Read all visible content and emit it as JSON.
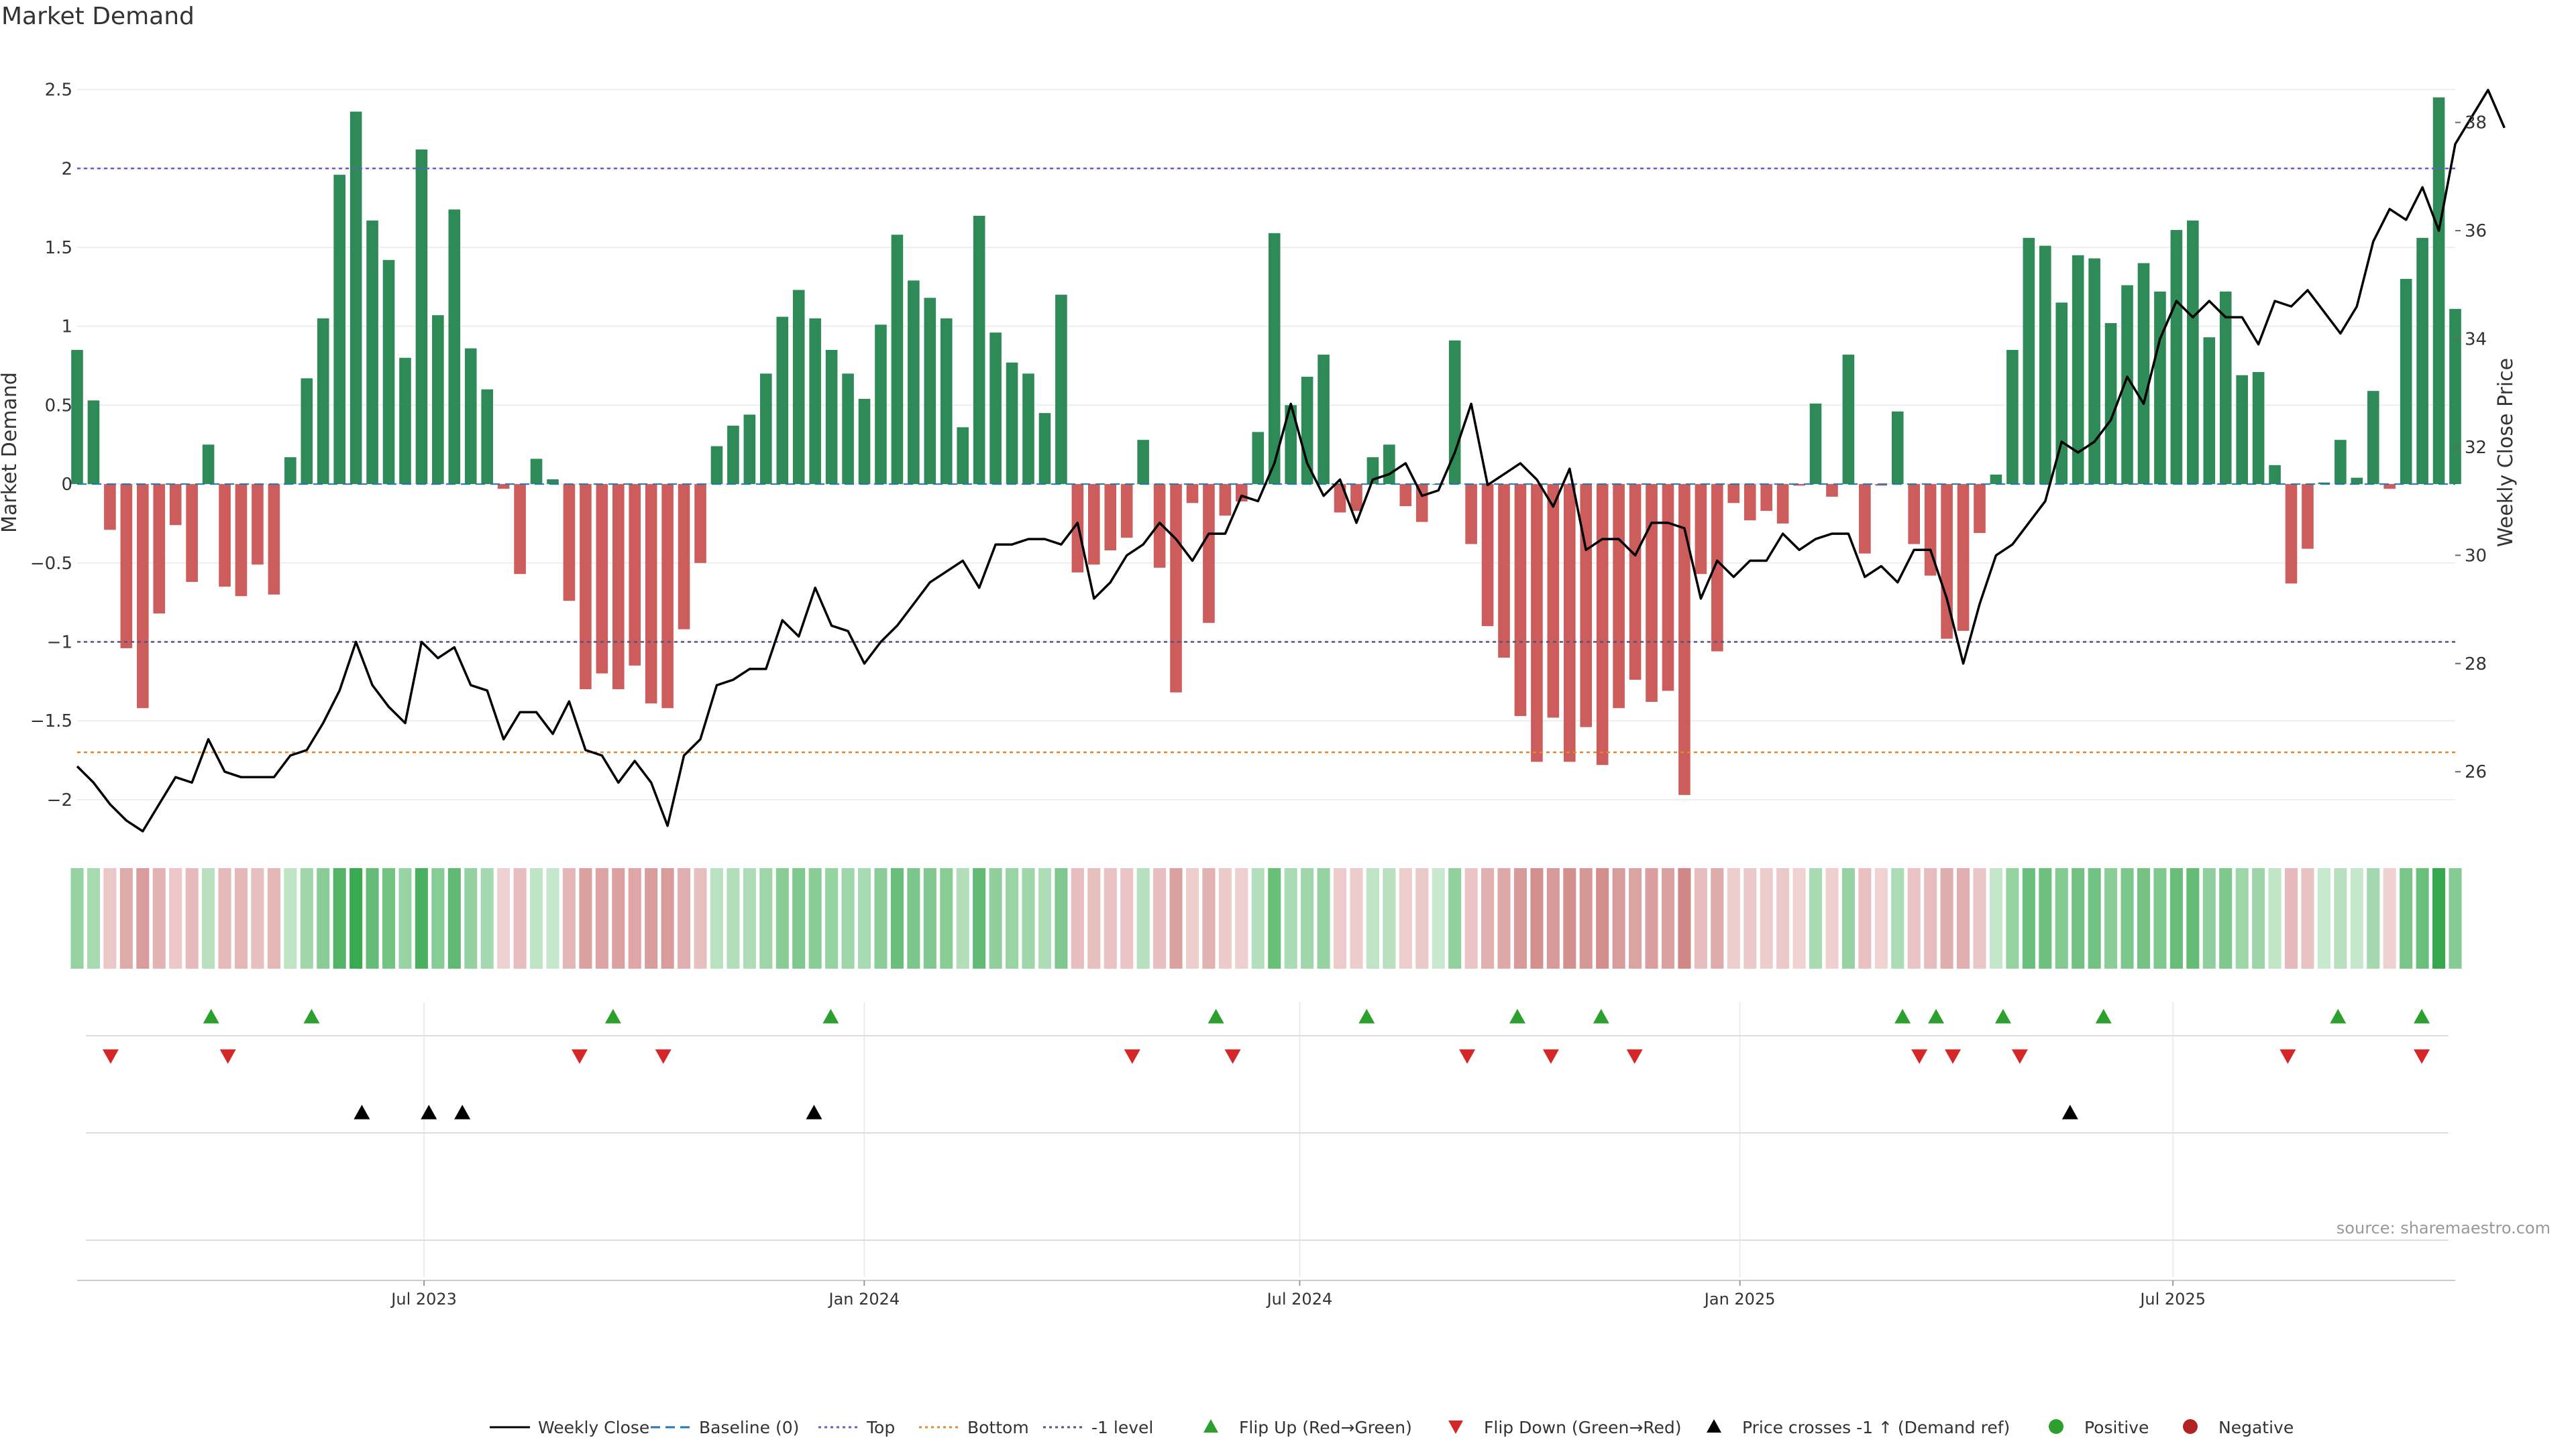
{
  "title": "Market Demand",
  "source": "source: sharemaestro.com",
  "colors": {
    "positive": "#2e8b57",
    "negative": "#cd5c5c",
    "price": "#000000",
    "top": "#6a5acd",
    "bottom": "#e08a2c",
    "level": "#555577",
    "flip_up": "#2ca02c",
    "flip_down": "#d62728"
  },
  "legend": [
    {
      "label": "Weekly Close",
      "kind": "line",
      "color": "#000000",
      "dash": ""
    },
    {
      "label": "Baseline (0)",
      "kind": "line",
      "color": "#1f77b4",
      "dash": "14,8"
    },
    {
      "label": "Top",
      "kind": "line",
      "color": "#6a5acd",
      "dash": "4,5"
    },
    {
      "label": "Bottom",
      "kind": "line",
      "color": "#e08a2c",
      "dash": "4,5"
    },
    {
      "label": "-1 level",
      "kind": "line",
      "color": "#555577",
      "dash": "4,5"
    },
    {
      "label": "Flip Up (Red→Green)",
      "kind": "tri-up",
      "color": "#2ca02c"
    },
    {
      "label": "Flip Down (Green→Red)",
      "kind": "tri-down",
      "color": "#d62728"
    },
    {
      "label": "Price crosses -1 ↑ (Demand ref)",
      "kind": "tri-up",
      "color": "#000000"
    },
    {
      "label": "Positive",
      "kind": "dot",
      "color": "#2ca02c"
    },
    {
      "label": "Negative",
      "kind": "dot",
      "color": "#b22222"
    }
  ],
  "chart_data": {
    "type": "bar",
    "ylabel": "Market Demand",
    "y2label": "Weekly Close Price",
    "ylim": [
      -2.2,
      2.6
    ],
    "y2lim": [
      24.9,
      38.9
    ],
    "yticks": [
      2.5,
      2,
      1.5,
      1,
      0.5,
      0,
      -0.5,
      -1,
      -1.5,
      -2
    ],
    "ytick_labels": [
      "2.5",
      "2",
      "1.5",
      "1",
      "0.5",
      "0",
      "−0.5",
      "−1",
      "−1.5",
      "−2"
    ],
    "y2ticks": [
      26,
      28,
      30,
      32,
      34,
      36,
      38
    ],
    "y2tick_labels": [
      "26",
      "28",
      "30",
      "32",
      "34",
      "36",
      "38"
    ],
    "x_start": "2023-02-06",
    "x_end": "2025-10-27",
    "xticks": [
      "2023-07-01",
      "2024-01-01",
      "2024-07-01",
      "2025-01-01",
      "2025-07-01"
    ],
    "xtick_labels": [
      "Jul 2023",
      "Jan 2024",
      "Jul 2024",
      "Jan 2025",
      "Jul 2025"
    ],
    "reference_lines": {
      "top": 2,
      "level": -1,
      "bottom": -1.7,
      "baseline": 0
    },
    "grid": true,
    "legend_position": "bottom-center",
    "demand": [
      0.85,
      0.53,
      -0.29,
      -1.04,
      -1.42,
      -0.82,
      -0.26,
      -0.62,
      0.25,
      -0.65,
      -0.71,
      -0.51,
      -0.7,
      0.17,
      0.67,
      1.05,
      1.96,
      2.36,
      1.67,
      1.42,
      0.8,
      2.12,
      1.07,
      1.74,
      0.86,
      0.6,
      -0.03,
      -0.57,
      0.16,
      0.03,
      -0.74,
      -1.3,
      -1.2,
      -1.3,
      -1.15,
      -1.39,
      -1.42,
      -0.92,
      -0.5,
      0.24,
      0.37,
      0.44,
      0.7,
      1.06,
      1.23,
      1.05,
      0.85,
      0.7,
      0.54,
      1.01,
      1.58,
      1.29,
      1.18,
      1.05,
      0.36,
      1.7,
      0.96,
      0.77,
      0.7,
      0.45,
      1.2,
      -0.56,
      -0.51,
      -0.42,
      -0.34,
      0.28,
      -0.53,
      -1.32,
      -0.12,
      -0.88,
      -0.2,
      -0.11,
      0.33,
      1.59,
      0.5,
      0.68,
      0.82,
      -0.18,
      -0.17,
      0.17,
      0.25,
      -0.14,
      -0.24,
      0.0,
      0.91,
      -0.38,
      -0.9,
      -1.1,
      -1.47,
      -1.76,
      -1.48,
      -1.76,
      -1.54,
      -1.78,
      -1.42,
      -1.24,
      -1.38,
      -1.31,
      -1.97,
      -0.57,
      -1.06,
      -0.12,
      -0.23,
      -0.17,
      -0.25,
      -0.01,
      0.51,
      -0.08,
      0.82,
      -0.44,
      -0.01,
      0.46,
      -0.38,
      -0.58,
      -0.98,
      -0.93,
      -0.31,
      0.06,
      0.85,
      1.56,
      1.51,
      1.15,
      1.45,
      1.43,
      1.02,
      1.26,
      1.4,
      1.22,
      1.61,
      1.67,
      0.93,
      1.22,
      0.69,
      0.71,
      0.12,
      -0.63,
      -0.41,
      0.01,
      0.28,
      0.04,
      0.59,
      -0.03,
      1.3,
      1.56,
      2.45,
      1.11
    ],
    "weekly_close": [
      26.1,
      25.8,
      25.4,
      25.1,
      24.9,
      25.4,
      25.9,
      25.8,
      26.6,
      26.0,
      25.9,
      25.9,
      25.9,
      26.3,
      26.4,
      26.9,
      27.5,
      28.4,
      27.6,
      27.2,
      26.9,
      28.4,
      28.1,
      28.3,
      27.6,
      27.5,
      26.6,
      27.1,
      27.1,
      26.7,
      27.3,
      26.4,
      26.3,
      25.8,
      26.2,
      25.8,
      25.0,
      26.3,
      26.6,
      27.6,
      27.7,
      27.9,
      27.9,
      28.8,
      28.5,
      29.4,
      28.7,
      28.6,
      28.0,
      28.4,
      28.7,
      29.1,
      29.5,
      29.7,
      29.9,
      29.4,
      30.2,
      30.2,
      30.3,
      30.3,
      30.2,
      30.6,
      29.2,
      29.5,
      30.0,
      30.2,
      30.6,
      30.3,
      29.9,
      30.4,
      30.4,
      31.1,
      31.0,
      31.7,
      32.8,
      31.7,
      31.1,
      31.4,
      30.6,
      31.4,
      31.5,
      31.7,
      31.1,
      31.2,
      31.9,
      32.8,
      31.3,
      31.5,
      31.7,
      31.4,
      30.9,
      31.6,
      30.1,
      30.3,
      30.3,
      30.0,
      30.6,
      30.6,
      30.5,
      29.2,
      29.9,
      29.6,
      29.9,
      29.9,
      30.4,
      30.1,
      30.3,
      30.4,
      30.4,
      29.6,
      29.8,
      29.5,
      30.1,
      30.1,
      29.2,
      28.0,
      29.1,
      30.0,
      30.2,
      30.6,
      31.0,
      32.1,
      31.9,
      32.1,
      32.5,
      33.3,
      32.8,
      34.0,
      34.7,
      34.4,
      34.7,
      34.4,
      34.4,
      33.9,
      34.7,
      34.6,
      34.9,
      34.5,
      34.1,
      34.6,
      35.8,
      36.4,
      36.2,
      36.8,
      36.0,
      37.6,
      38.1,
      38.6,
      37.9
    ],
    "flip_up_dates": [
      "2023-04-03",
      "2023-05-15",
      "2023-09-18",
      "2023-12-18",
      "2024-05-27",
      "2024-07-29",
      "2024-09-30",
      "2024-11-04",
      "2025-03-10",
      "2025-03-24",
      "2025-04-21",
      "2025-06-02",
      "2025-09-08",
      "2025-10-13"
    ],
    "flip_down_dates": [
      "2023-02-20",
      "2023-04-10",
      "2023-09-04",
      "2023-10-09",
      "2024-04-22",
      "2024-06-03",
      "2024-09-09",
      "2024-10-14",
      "2024-11-18",
      "2025-03-17",
      "2025-03-31",
      "2025-04-28",
      "2025-08-18",
      "2025-10-13"
    ],
    "price_cross_dates": [
      "2023-06-05",
      "2023-07-03",
      "2023-07-17",
      "2023-12-11",
      "2025-05-19"
    ]
  }
}
